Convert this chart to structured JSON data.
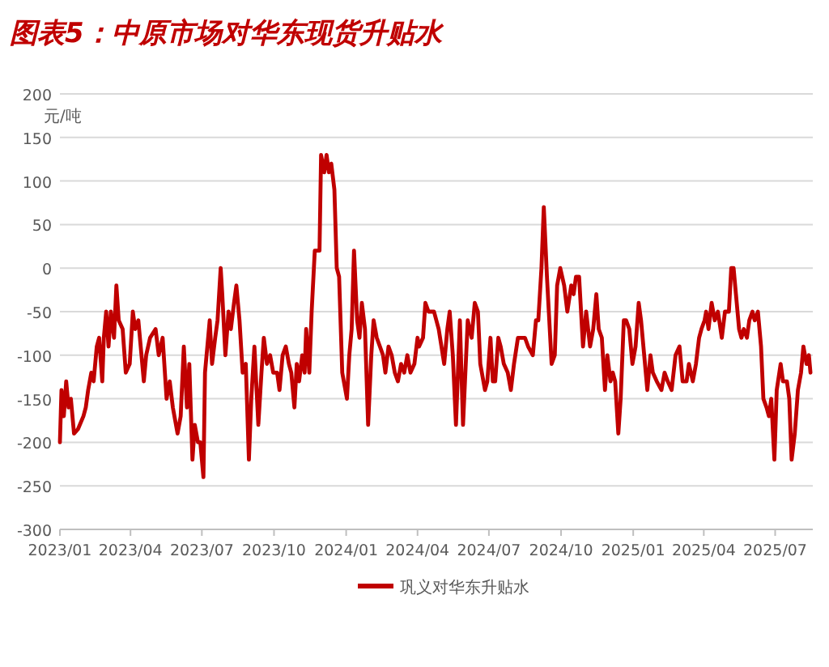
{
  "chart_data": {
    "type": "line",
    "title": "图表5：中原市场对华东现货升贴水",
    "ylabel": "元/吨",
    "x": [
      "2023-01-01",
      "2023-01-03",
      "2023-01-06",
      "2023-01-09",
      "2023-01-12",
      "2023-01-15",
      "2023-01-19",
      "2023-01-24",
      "2023-01-31",
      "2023-02-03",
      "2023-02-06",
      "2023-02-10",
      "2023-02-13",
      "2023-02-17",
      "2023-02-20",
      "2023-02-24",
      "2023-02-26",
      "2023-03-01",
      "2023-03-04",
      "2023-03-07",
      "2023-03-11",
      "2023-03-14",
      "2023-03-17",
      "2023-03-22",
      "2023-03-26",
      "2023-03-31",
      "2023-04-04",
      "2023-04-07",
      "2023-04-11",
      "2023-04-15",
      "2023-04-18",
      "2023-04-21",
      "2023-04-26",
      "2023-05-03",
      "2023-05-07",
      "2023-05-12",
      "2023-05-17",
      "2023-05-21",
      "2023-05-25",
      "2023-05-31",
      "2023-06-04",
      "2023-06-08",
      "2023-06-12",
      "2023-06-15",
      "2023-06-19",
      "2023-06-22",
      "2023-06-26",
      "2023-06-29",
      "2023-07-03",
      "2023-07-05",
      "2023-07-11",
      "2023-07-14",
      "2023-07-18",
      "2023-07-21",
      "2023-07-25",
      "2023-07-27",
      "2023-07-31",
      "2023-08-04",
      "2023-08-07",
      "2023-08-11",
      "2023-08-14",
      "2023-08-18",
      "2023-08-22",
      "2023-08-26",
      "2023-08-30",
      "2023-09-02",
      "2023-09-06",
      "2023-09-11",
      "2023-09-15",
      "2023-09-18",
      "2023-09-22",
      "2023-09-26",
      "2023-09-30",
      "2023-10-05",
      "2023-10-08",
      "2023-10-12",
      "2023-10-16",
      "2023-10-20",
      "2023-10-23",
      "2023-10-27",
      "2023-10-30",
      "2023-11-02",
      "2023-11-06",
      "2023-11-09",
      "2023-11-11",
      "2023-11-15",
      "2023-11-18",
      "2023-11-22",
      "2023-11-28",
      "2023-11-30",
      "2023-12-04",
      "2023-12-07",
      "2023-12-10",
      "2023-12-13",
      "2023-12-17",
      "2023-12-20",
      "2023-12-23",
      "2023-12-27",
      "2023-12-29",
      "2024-01-02",
      "2024-01-05",
      "2024-01-08",
      "2024-01-11",
      "2024-01-15",
      "2024-01-18",
      "2024-01-21",
      "2024-01-25",
      "2024-01-29",
      "2024-02-02",
      "2024-02-05",
      "2024-02-09",
      "2024-02-13",
      "2024-02-17",
      "2024-02-20",
      "2024-02-24",
      "2024-02-28",
      "2024-03-03",
      "2024-03-07",
      "2024-03-11",
      "2024-03-15",
      "2024-03-19",
      "2024-03-23",
      "2024-03-28",
      "2024-04-01",
      "2024-04-03",
      "2024-04-08",
      "2024-04-11",
      "2024-04-15",
      "2024-04-22",
      "2024-04-28",
      "2024-05-05",
      "2024-05-09",
      "2024-05-12",
      "2024-05-16",
      "2024-05-20",
      "2024-05-25",
      "2024-05-29",
      "2024-06-04",
      "2024-06-09",
      "2024-06-13",
      "2024-06-17",
      "2024-06-20",
      "2024-06-26",
      "2024-06-29",
      "2024-07-03",
      "2024-07-06",
      "2024-07-09",
      "2024-07-13",
      "2024-07-16",
      "2024-07-20",
      "2024-07-25",
      "2024-07-29",
      "2024-08-02",
      "2024-08-07",
      "2024-08-16",
      "2024-08-20",
      "2024-08-26",
      "2024-08-30",
      "2024-09-02",
      "2024-09-06",
      "2024-09-09",
      "2024-09-13",
      "2024-09-16",
      "2024-09-19",
      "2024-09-23",
      "2024-09-26",
      "2024-09-30",
      "2024-10-05",
      "2024-10-09",
      "2024-10-14",
      "2024-10-17",
      "2024-10-20",
      "2024-10-24",
      "2024-10-29",
      "2024-11-02",
      "2024-11-07",
      "2024-11-11",
      "2024-11-15",
      "2024-11-18",
      "2024-11-22",
      "2024-11-26",
      "2024-11-29",
      "2024-12-03",
      "2024-12-06",
      "2024-12-09",
      "2024-12-13",
      "2024-12-16",
      "2024-12-20",
      "2024-12-23",
      "2024-12-27",
      "2024-12-31",
      "2025-01-04",
      "2025-01-08",
      "2025-01-11",
      "2025-01-15",
      "2025-01-19",
      "2025-01-23",
      "2025-01-26",
      "2025-01-31",
      "2025-02-06",
      "2025-02-10",
      "2025-02-14",
      "2025-02-19",
      "2025-02-24",
      "2025-03-01",
      "2025-03-05",
      "2025-03-10",
      "2025-03-13",
      "2025-03-18",
      "2025-03-22",
      "2025-03-26",
      "2025-03-29",
      "2025-04-02",
      "2025-04-04",
      "2025-04-07",
      "2025-04-11",
      "2025-04-15",
      "2025-04-19",
      "2025-04-24",
      "2025-04-28",
      "2025-05-03",
      "2025-05-06",
      "2025-05-09",
      "2025-05-12",
      "2025-05-16",
      "2025-05-19",
      "2025-05-22",
      "2025-05-26",
      "2025-05-29",
      "2025-06-02",
      "2025-06-05",
      "2025-06-09",
      "2025-06-13",
      "2025-06-16",
      "2025-06-20",
      "2025-06-23",
      "2025-06-26",
      "2025-06-30",
      "2025-07-03",
      "2025-07-08",
      "2025-07-11",
      "2025-07-16",
      "2025-07-19",
      "2025-07-22",
      "2025-07-26",
      "2025-07-30",
      "2025-08-03",
      "2025-08-06",
      "2025-08-10",
      "2025-08-13",
      "2025-08-15"
    ],
    "series": [
      {
        "name": "巩义对华东升贴水",
        "color": "#c00000",
        "values": [
          -200,
          -140,
          -170,
          -130,
          -160,
          -150,
          -190,
          -185,
          -170,
          -160,
          -140,
          -120,
          -130,
          -90,
          -80,
          -130,
          -80,
          -50,
          -90,
          -50,
          -80,
          -20,
          -60,
          -70,
          -120,
          -110,
          -50,
          -70,
          -60,
          -100,
          -130,
          -100,
          -80,
          -70,
          -100,
          -80,
          -150,
          -130,
          -160,
          -190,
          -170,
          -90,
          -160,
          -110,
          -220,
          -180,
          -200,
          -200,
          -240,
          -120,
          -60,
          -110,
          -80,
          -60,
          0,
          -30,
          -100,
          -50,
          -70,
          -40,
          -20,
          -60,
          -120,
          -110,
          -220,
          -150,
          -90,
          -180,
          -120,
          -80,
          -110,
          -100,
          -120,
          -120,
          -140,
          -100,
          -90,
          -110,
          -120,
          -160,
          -110,
          -130,
          -100,
          -120,
          -70,
          -120,
          -50,
          20,
          20,
          130,
          110,
          130,
          110,
          120,
          90,
          0,
          -10,
          -120,
          -130,
          -150,
          -100,
          -70,
          20,
          -60,
          -80,
          -40,
          -70,
          -180,
          -100,
          -60,
          -80,
          -90,
          -100,
          -120,
          -90,
          -100,
          -120,
          -130,
          -110,
          -120,
          -100,
          -120,
          -110,
          -80,
          -90,
          -80,
          -40,
          -50,
          -50,
          -70,
          -110,
          -70,
          -50,
          -100,
          -180,
          -60,
          -180,
          -60,
          -80,
          -40,
          -50,
          -110,
          -140,
          -130,
          -80,
          -130,
          -130,
          -80,
          -90,
          -110,
          -120,
          -140,
          -110,
          -80,
          -80,
          -90,
          -100,
          -60,
          -60,
          0,
          70,
          -10,
          -60,
          -110,
          -100,
          -20,
          0,
          -20,
          -50,
          -20,
          -30,
          -10,
          -10,
          -90,
          -50,
          -90,
          -70,
          -30,
          -70,
          -80,
          -140,
          -100,
          -130,
          -120,
          -130,
          -190,
          -150,
          -60,
          -60,
          -70,
          -110,
          -90,
          -40,
          -60,
          -100,
          -140,
          -100,
          -120,
          -130,
          -140,
          -120,
          -130,
          -140,
          -100,
          -90,
          -130,
          -130,
          -110,
          -130,
          -110,
          -80,
          -70,
          -60,
          -50,
          -70,
          -40,
          -60,
          -50,
          -80,
          -50,
          -50,
          0,
          0,
          -30,
          -70,
          -80,
          -70,
          -80,
          -60,
          -50,
          -60,
          -50,
          -90,
          -150,
          -160,
          -170,
          -150,
          -220,
          -140,
          -110,
          -130,
          -130,
          -150,
          -220,
          -190,
          -140,
          -120,
          -90,
          -110,
          -100,
          -120
        ]
      }
    ],
    "xlim": [
      "2023-01-01",
      "2025-08-18"
    ],
    "xticks": [
      {
        "value": "2023-01-01",
        "label": "2023/01"
      },
      {
        "value": "2023-04-01",
        "label": "2023/04"
      },
      {
        "value": "2023-07-01",
        "label": "2023/07"
      },
      {
        "value": "2023-10-01",
        "label": "2023/10"
      },
      {
        "value": "2024-01-01",
        "label": "2024/01"
      },
      {
        "value": "2024-04-01",
        "label": "2024/04"
      },
      {
        "value": "2024-07-01",
        "label": "2024/07"
      },
      {
        "value": "2024-10-01",
        "label": "2024/10"
      },
      {
        "value": "2025-01-01",
        "label": "2025/01"
      },
      {
        "value": "2025-04-01",
        "label": "2025/04"
      },
      {
        "value": "2025-07-01",
        "label": "2025/07"
      }
    ],
    "ylim": [
      -300,
      200
    ],
    "yticks": [
      -300,
      -250,
      -200,
      -150,
      -100,
      -50,
      0,
      50,
      100,
      150,
      200
    ],
    "grid": "y",
    "legend": "bottom",
    "line_style": "solid",
    "marker": "none"
  }
}
